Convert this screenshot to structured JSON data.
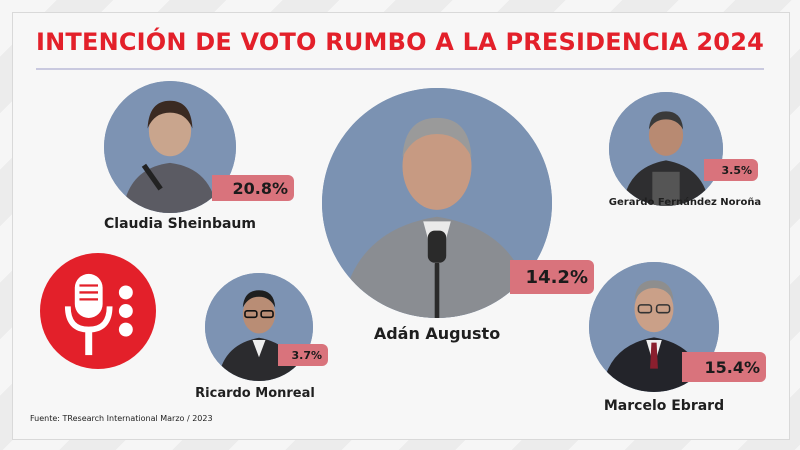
{
  "title": "INTENCIÓN DE VOTO RUMBO A LA PRESIDENCIA 2024",
  "source": "Fuente: TResearch International Marzo / 2023",
  "colors": {
    "title": "#e3202a",
    "badge": "#d9737c",
    "photo_bg": "#7b92b2",
    "logo": "#e3202a"
  },
  "icons": {
    "logo": "microphone-icon"
  },
  "chart_data": {
    "type": "table",
    "categories": [
      "Claudia Sheinbaum",
      "Adán Augusto",
      "Gerardo Fernández Noroña",
      "Ricardo Monreal",
      "Marcelo Ebrard"
    ],
    "values": [
      20.8,
      14.2,
      3.5,
      3.7,
      15.4
    ],
    "labels": [
      "20.8%",
      "14.2%",
      "3.5%",
      "3.7%",
      "15.4%"
    ],
    "title": "INTENCIÓN DE VOTO RUMBO A LA PRESIDENCIA 2024"
  }
}
